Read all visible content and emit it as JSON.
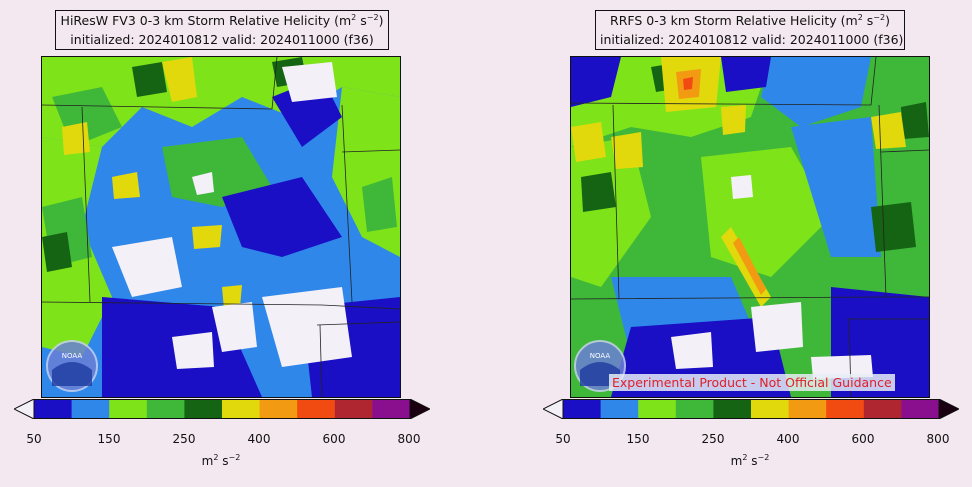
{
  "panels": [
    {
      "id": "hiresw",
      "title_line1": "HiResW FV3 0-3 km Storm Relative Helicity (m",
      "title_sup1": "2",
      "title_mid": " s",
      "title_sup2": "−2",
      "title_end": ")",
      "title_line2": "initialized: 2024010812 valid: 2024011000 (f36)",
      "logo": "noaa-logo",
      "watermark": ""
    },
    {
      "id": "rrfs",
      "title_line1": "RRFS 0-3 km Storm Relative Helicity (m",
      "title_sup1": "2",
      "title_mid": " s",
      "title_sup2": "−2",
      "title_end": ")",
      "title_line2": "initialized: 2024010812 valid: 2024011000 (f36)",
      "logo": "noaa-logo",
      "watermark": "Experimental Product - Not Official Guidance"
    }
  ],
  "colorbar": {
    "ticks": [
      "50",
      "150",
      "250",
      "400",
      "600",
      "800"
    ],
    "unit_base": "m",
    "unit_sup1": "2",
    "unit_mid": " s",
    "unit_sup2": "−2",
    "under_color": "#f4f0f8",
    "over_color": "#1a0010",
    "colors": [
      "#1a0fc4",
      "#2f87ea",
      "#7fe31a",
      "#3fb83a",
      "#146414",
      "#e2d90c",
      "#f29a12",
      "#f24b12",
      "#b02630",
      "#8a0f8f"
    ]
  }
}
